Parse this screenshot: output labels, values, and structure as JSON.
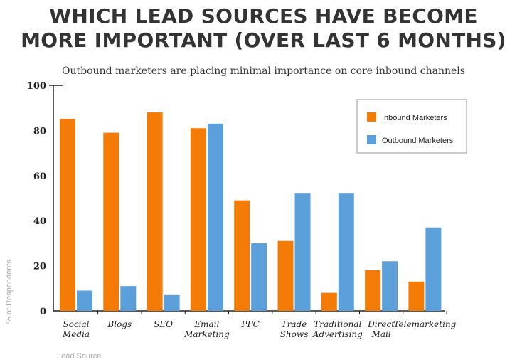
{
  "title_line1": "WHICH LEAD SOURCES HAVE BECOME",
  "title_line2": "MORE IMPORTANT (OVER LAST 6 MONTHS)",
  "subtitle": "Outbound marketers are placing minimal importance on core inbound channels",
  "colors": {
    "inbound": "#f47b05",
    "outbound": "#5b9fdb"
  },
  "chart_data": {
    "type": "bar",
    "categories": [
      [
        "Social",
        "Media"
      ],
      [
        "Blogs"
      ],
      [
        "SEO"
      ],
      [
        "Email",
        "Marketing"
      ],
      [
        "PPC"
      ],
      [
        "Trade",
        "Shows"
      ],
      [
        "Traditional",
        "Advertising"
      ],
      [
        "Direct",
        "Mail"
      ],
      [
        "Telemarketing"
      ]
    ],
    "series": [
      {
        "name": "Inbound Marketers",
        "values": [
          85,
          79,
          88,
          81,
          49,
          31,
          8,
          18,
          13
        ]
      },
      {
        "name": "Outbound Marketers",
        "values": [
          9,
          11,
          7,
          83,
          30,
          52,
          52,
          22,
          37
        ]
      }
    ],
    "ylim": [
      0,
      100
    ],
    "yticks": [
      "0",
      "20",
      "40",
      "60",
      "80",
      "100"
    ],
    "xlabel": "Lead Source",
    "ylabel": "% of Respondents",
    "legend_position": "top-right"
  }
}
